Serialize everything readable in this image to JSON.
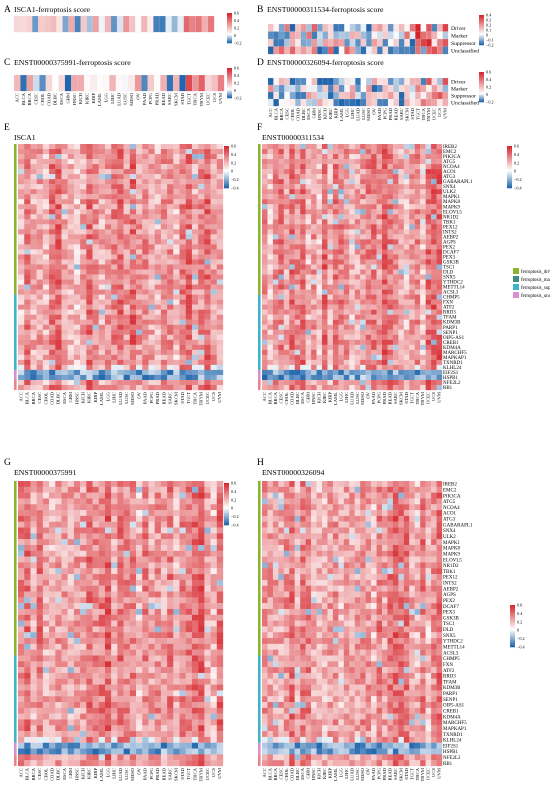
{
  "panels": [
    {
      "letter": "A",
      "title": "ISCA1-ferroptosis score",
      "ticks": [
        "0.6",
        "0.4",
        "0.2",
        "0",
        "−0.2"
      ]
    },
    {
      "letter": "B",
      "title": "ENST00000311534-ferroptosis score",
      "ticks": [
        "0.4",
        "0.3",
        "0.2",
        "0.1",
        "0",
        "−0.1",
        "−0.2"
      ],
      "row_labels": [
        "Driver",
        "Marker",
        "Suppressor",
        "Unclassified"
      ]
    },
    {
      "letter": "C",
      "title": "ENST00000375991-ferroptosis score",
      "ticks": [
        "0.6",
        "0.4",
        "0.2",
        "0",
        "−0.2"
      ]
    },
    {
      "letter": "D",
      "title": "ENST00000326094-ferroptosis score",
      "ticks": [
        "0.6",
        "0.4",
        "0.2",
        "0",
        "−0.2"
      ],
      "row_labels": [
        "Driver",
        "Marker",
        "Suppressor",
        "Unclassified"
      ]
    },
    {
      "letter": "E",
      "title": "ISCA1",
      "ticks": [
        "0.6",
        "0.4",
        "0.2",
        "0",
        "−0.2",
        "−0.4"
      ]
    },
    {
      "letter": "F",
      "title": "ENST00000311534",
      "ticks": [
        "0.6",
        "0.4",
        "0.2",
        "0",
        "−0.2",
        "−0.4"
      ]
    },
    {
      "letter": "G",
      "title": "ENST00000375991",
      "ticks": [
        "0.6",
        "0.4",
        "0.2",
        "0",
        "−0.2",
        "−0.4"
      ]
    },
    {
      "letter": "H",
      "title": "ENST00000326094",
      "ticks": [
        "0.6",
        "0.4",
        "0.2",
        "0",
        "−0.2",
        "−0.4"
      ]
    }
  ],
  "cancers": [
    "ACC",
    "BLCA",
    "BRCA",
    "CESC",
    "CHOL",
    "COAD",
    "DLBC",
    "ESCA",
    "GBM",
    "HNSC",
    "KICH",
    "KIRC",
    "KIRP",
    "LAML",
    "LGG",
    "LIHC",
    "LUAD",
    "LUSC",
    "MESO",
    "OV",
    "PAAD",
    "PCPG",
    "PRAD",
    "READ",
    "SARC",
    "SKCM",
    "STAD",
    "TGCT",
    "THCA",
    "THYM",
    "UCEC",
    "UCS",
    "UVM"
  ],
  "genes": [
    "IREB2",
    "EMC2",
    "PIK3CA",
    "ATG5",
    "NCOA4",
    "ACO1",
    "ATG3",
    "GABARAPL1",
    "SNX4",
    "ULK2",
    "MAPK1",
    "MAPK8",
    "MAPK9",
    "ELOVL5",
    "NR1D2",
    "TBK1",
    "PEX12",
    "INTS2",
    "AEBP2",
    "AGPS",
    "PEX2",
    "DCAF7",
    "PEX3",
    "GSK3B",
    "TSC1",
    "DLD",
    "SNX5",
    "YTHDC2",
    "METTL14",
    "ACSL3",
    "CHMP5",
    "FXN",
    "ATF2",
    "BRD3",
    "TFAM",
    "KDM3B",
    "PARP1",
    "SENP1",
    "OIP5-AS1",
    "CREB1",
    "KDM4A",
    "MARCHF5",
    "MAPKAP1",
    "TXNRD1",
    "KLHL24",
    "EIF2S1",
    "HSPB1",
    "NFE2L2",
    "RB1"
  ],
  "legend": {
    "items": [
      {
        "label": "ferroptosis_driver",
        "color": "#8db32f"
      },
      {
        "label": "ferroptosis_marker",
        "color": "#3e8f80"
      },
      {
        "label": "ferroptosis_suppressor",
        "color": "#3fb3c8"
      },
      {
        "label": "ferroptosis_unclassified",
        "color": "#d98fd0"
      }
    ]
  },
  "colors": {
    "pos": "#d6262c",
    "neg": "#2166ac",
    "mid": "#ffffff",
    "unclassified_bar": "#e8858a"
  },
  "chart_data": [
    {
      "panel": "A",
      "type": "heatmap",
      "title": "ISCA1-ferroptosis score",
      "rows": 1,
      "x": "cancers",
      "color_range": [
        -0.25,
        0.65
      ]
    },
    {
      "panel": "B",
      "type": "heatmap",
      "title": "ENST00000311534-ferroptosis score",
      "rows": [
        "Driver",
        "Marker",
        "Suppressor",
        "Unclassified"
      ],
      "x": "cancers",
      "color_range": [
        -0.25,
        0.45
      ]
    },
    {
      "panel": "C",
      "type": "heatmap",
      "title": "ENST00000375991-ferroptosis score",
      "rows": 1,
      "x": "cancers",
      "color_range": [
        -0.25,
        0.65
      ]
    },
    {
      "panel": "D",
      "type": "heatmap",
      "title": "ENST00000326094-ferroptosis score",
      "rows": [
        "Driver",
        "Marker",
        "Suppressor",
        "Unclassified"
      ],
      "x": "cancers",
      "color_range": [
        -0.25,
        0.65
      ]
    },
    {
      "panel": "E",
      "type": "heatmap",
      "title": "ISCA1",
      "y": "genes",
      "x": "cancers",
      "color_range": [
        -0.45,
        0.65
      ]
    },
    {
      "panel": "F",
      "type": "heatmap",
      "title": "ENST00000311534",
      "y": "genes",
      "x": "cancers",
      "color_range": [
        -0.45,
        0.65
      ]
    },
    {
      "panel": "G",
      "type": "heatmap",
      "title": "ENST00000375991",
      "y": "genes",
      "x": "cancers",
      "color_range": [
        -0.45,
        0.65
      ]
    },
    {
      "panel": "H",
      "type": "heatmap",
      "title": "ENST00000326094",
      "y": "genes",
      "x": "cancers",
      "color_range": [
        -0.45,
        0.65
      ]
    }
  ]
}
